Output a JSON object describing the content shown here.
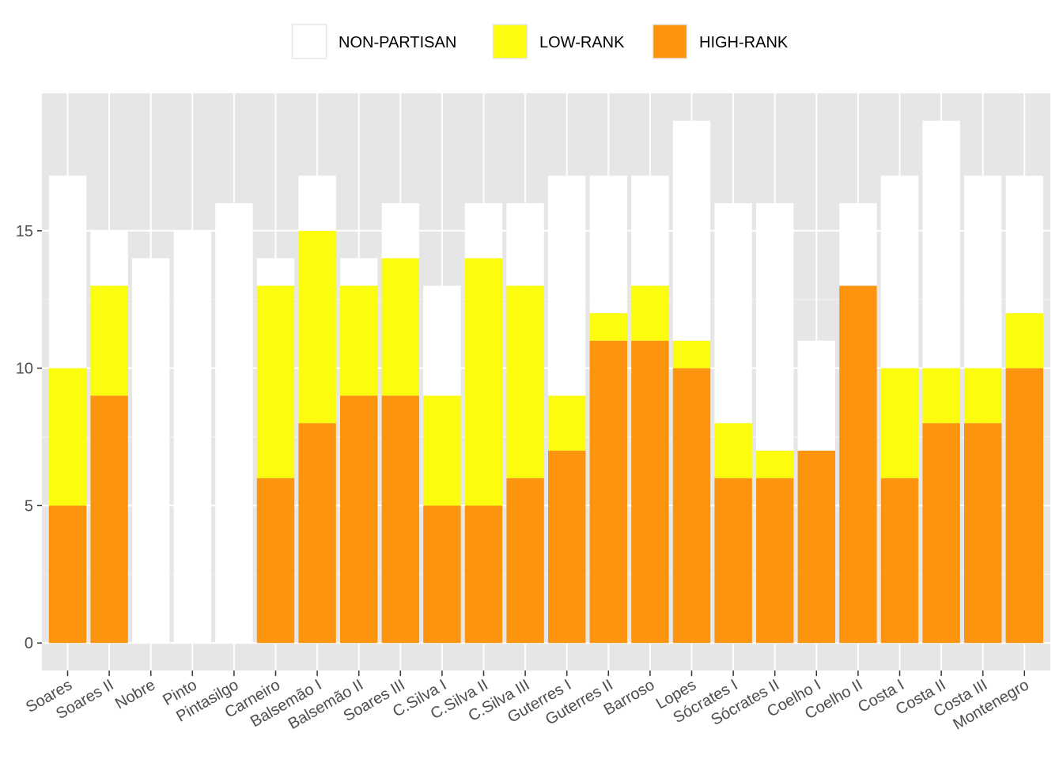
{
  "chart_data": {
    "type": "bar",
    "stacked": true,
    "categories": [
      "Soares",
      "Soares II",
      "Nobre",
      "Pinto",
      "Pintasilgo",
      "Carneiro",
      "Balsemão I",
      "Balsemão II",
      "Soares III",
      "C.Silva I",
      "C.Silva II",
      "C.Silva III",
      "Guterres I",
      "Guterres II",
      "Barroso",
      "Lopes",
      "Sócrates I",
      "Sócrates II",
      "Coelho I",
      "Coelho II",
      "Costa I",
      "Costa II",
      "Costa III",
      "Montenegro"
    ],
    "series": [
      {
        "name": "HIGH-RANK",
        "color": "#fc940f",
        "values": [
          5,
          9,
          0,
          0,
          0,
          6,
          8,
          9,
          9,
          5,
          5,
          6,
          7,
          11,
          11,
          10,
          6,
          6,
          7,
          13,
          6,
          8,
          8,
          10
        ]
      },
      {
        "name": "LOW-RANK",
        "color": "#fcfc0f",
        "values": [
          5,
          4,
          0,
          0,
          0,
          7,
          7,
          4,
          5,
          4,
          9,
          7,
          2,
          1,
          2,
          1,
          2,
          1,
          0,
          0,
          4,
          2,
          2,
          2
        ]
      },
      {
        "name": "NON-PARTISAN",
        "color": "#ffffff",
        "values": [
          7,
          2,
          14,
          15,
          16,
          1,
          2,
          1,
          2,
          4,
          2,
          3,
          8,
          5,
          4,
          8,
          8,
          9,
          4,
          3,
          7,
          9,
          7,
          5
        ]
      }
    ],
    "legend_order": [
      "NON-PARTISAN",
      "LOW-RANK",
      "HIGH-RANK"
    ],
    "legend_position": "top",
    "y_ticks": [
      "0",
      "5",
      "10",
      "15"
    ],
    "ylim": [
      -1,
      20
    ],
    "grid": true,
    "title": "",
    "xlabel": "",
    "ylabel": ""
  }
}
